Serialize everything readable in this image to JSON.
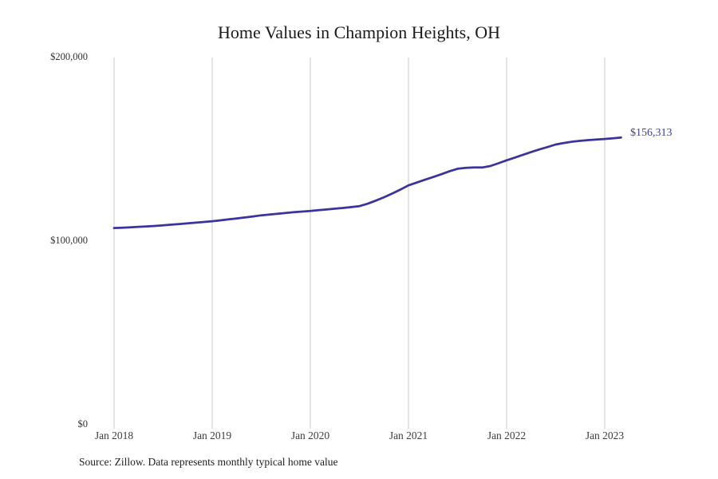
{
  "chart_data": {
    "type": "line",
    "title": "Home Values in Champion Heights, OH",
    "source_note": "Source: Zillow. Data represents monthly typical home value",
    "series_name": "Monthly typical home value",
    "xlabel": "",
    "ylabel": "",
    "legend": "none",
    "grid": "vertical-only",
    "ylim": [
      0,
      200000
    ],
    "y_ticks": [
      0,
      100000,
      200000
    ],
    "y_tick_labels": [
      "$0",
      "$100,000",
      "$200,000"
    ],
    "x_tick_labels": [
      "Jan 2018",
      "Jan 2019",
      "Jan 2020",
      "Jan 2021",
      "Jan 2022",
      "Jan 2023"
    ],
    "end_label": "$156,313",
    "end_value": 156313,
    "line_color": "#3a33a0",
    "end_label_color": "#3d3f9e",
    "grid_color": "#c9c9c9",
    "months": [
      "2018-01",
      "2018-02",
      "2018-03",
      "2018-04",
      "2018-05",
      "2018-06",
      "2018-07",
      "2018-08",
      "2018-09",
      "2018-10",
      "2018-11",
      "2018-12",
      "2019-01",
      "2019-02",
      "2019-03",
      "2019-04",
      "2019-05",
      "2019-06",
      "2019-07",
      "2019-08",
      "2019-09",
      "2019-10",
      "2019-11",
      "2019-12",
      "2020-01",
      "2020-02",
      "2020-03",
      "2020-04",
      "2020-05",
      "2020-06",
      "2020-07",
      "2020-08",
      "2020-09",
      "2020-10",
      "2020-11",
      "2020-12",
      "2021-01",
      "2021-02",
      "2021-03",
      "2021-04",
      "2021-05",
      "2021-06",
      "2021-07",
      "2021-08",
      "2021-09",
      "2021-10",
      "2021-11",
      "2021-12",
      "2022-01",
      "2022-02",
      "2022-03",
      "2022-04",
      "2022-05",
      "2022-06",
      "2022-07",
      "2022-08",
      "2022-09",
      "2022-10",
      "2022-11",
      "2022-12",
      "2023-01",
      "2023-02",
      "2023-03"
    ],
    "values": [
      107100,
      107300,
      107500,
      107750,
      108000,
      108250,
      108600,
      108950,
      109300,
      109650,
      110000,
      110400,
      110800,
      111300,
      111800,
      112300,
      112850,
      113400,
      114000,
      114450,
      114900,
      115300,
      115700,
      116050,
      116400,
      116800,
      117200,
      117600,
      118000,
      118500,
      119000,
      120300,
      122000,
      123800,
      125800,
      128000,
      130300,
      131800,
      133300,
      134800,
      136300,
      137900,
      139300,
      139800,
      140000,
      140000,
      140800,
      142300,
      143900,
      145400,
      146900,
      148400,
      149800,
      151100,
      152500,
      153300,
      154000,
      154500,
      154900,
      155200,
      155500,
      155900,
      156313
    ]
  }
}
